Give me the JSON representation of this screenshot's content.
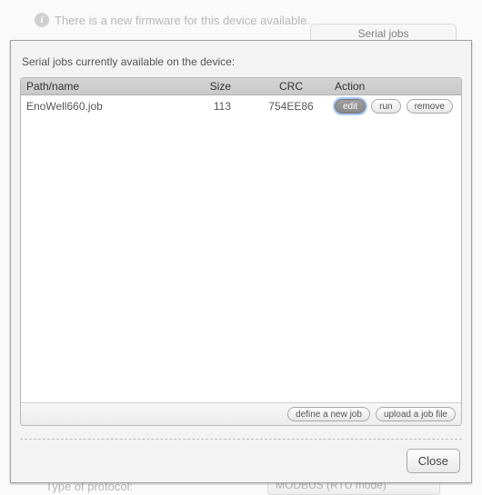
{
  "background": {
    "firmware_prefix": "There is a ",
    "firmware_link": "new firmware for this device",
    "firmware_suffix": " available.",
    "tab_label": "Serial jobs",
    "protocol_label": "Type of protocol:",
    "protocol_value": "MODBUS (RTU mode)"
  },
  "modal": {
    "title": "Serial jobs currently available on the device:",
    "columns": {
      "path": "Path/name",
      "size": "Size",
      "crc": "CRC",
      "action": "Action"
    },
    "rows": [
      {
        "path": "EnoWell660.job",
        "size": "113",
        "crc": "754EE86",
        "actions": {
          "edit": "edit",
          "run": "run",
          "remove": "remove"
        }
      }
    ],
    "footer": {
      "define": "define a new job",
      "upload": "upload a job file"
    },
    "close": "Close"
  },
  "style": {
    "modal_bg": "#f3f3f3",
    "border": "#a0a0a0",
    "header_grad_top": "#d4d4d4",
    "header_grad_bot": "#c9c9c9",
    "text": "#555555",
    "btn_focus_ring": "#5e9eff"
  }
}
